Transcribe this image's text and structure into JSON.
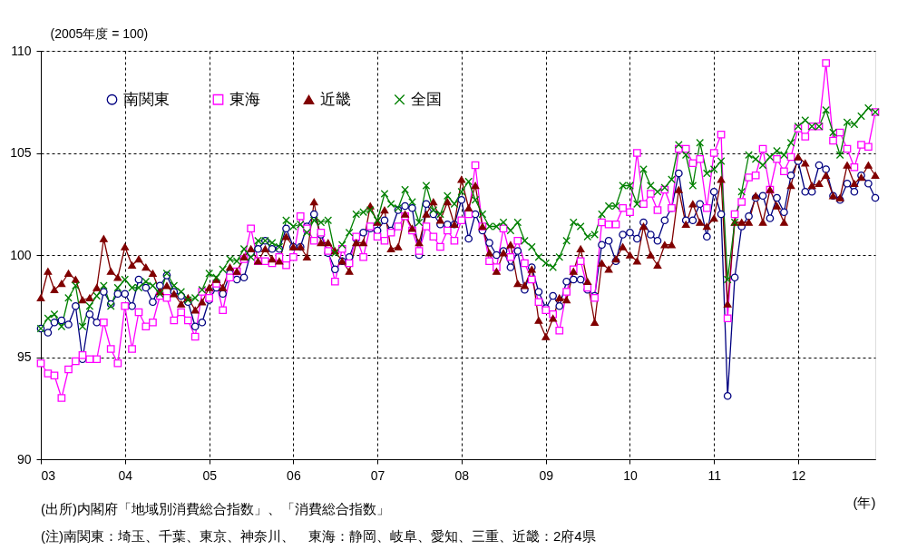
{
  "chart_data": {
    "type": "line",
    "ylabel": "(2005年度 = 100)",
    "xlabel": "(年)",
    "annotations": [
      "(出所)内閣府「地域別消費総合指数」、「消費総合指数」",
      "(注)南関東：埼玉、千葉、東京、神奈川、　東海：静岡、岐阜、愛知、三重、近畿：2府4県"
    ],
    "x": [
      "2003-01",
      "2003-02",
      "2003-03",
      "2003-04",
      "2003-05",
      "2003-06",
      "2003-07",
      "2003-08",
      "2003-09",
      "2003-10",
      "2003-11",
      "2003-12",
      "2004-01",
      "2004-02",
      "2004-03",
      "2004-04",
      "2004-05",
      "2004-06",
      "2004-07",
      "2004-08",
      "2004-09",
      "2004-10",
      "2004-11",
      "2004-12",
      "2005-01",
      "2005-02",
      "2005-03",
      "2005-04",
      "2005-05",
      "2005-06",
      "2005-07",
      "2005-08",
      "2005-09",
      "2005-10",
      "2005-11",
      "2005-12",
      "2006-01",
      "2006-02",
      "2006-03",
      "2006-04",
      "2006-05",
      "2006-06",
      "2006-07",
      "2006-08",
      "2006-09",
      "2006-10",
      "2006-11",
      "2006-12",
      "2007-01",
      "2007-02",
      "2007-03",
      "2007-04",
      "2007-05",
      "2007-06",
      "2007-07",
      "2007-08",
      "2007-09",
      "2007-10",
      "2007-11",
      "2007-12",
      "2008-01",
      "2008-02",
      "2008-03",
      "2008-04",
      "2008-05",
      "2008-06",
      "2008-07",
      "2008-08",
      "2008-09",
      "2008-10",
      "2008-11",
      "2008-12",
      "2009-01",
      "2009-02",
      "2009-03",
      "2009-04",
      "2009-05",
      "2009-06",
      "2009-07",
      "2009-08",
      "2009-09",
      "2009-10",
      "2009-11",
      "2009-12",
      "2010-01",
      "2010-02",
      "2010-03",
      "2010-04",
      "2010-05",
      "2010-06",
      "2010-07",
      "2010-08",
      "2010-09",
      "2010-10",
      "2010-11",
      "2010-12",
      "2011-01",
      "2011-02",
      "2011-03",
      "2011-04",
      "2011-05",
      "2011-06",
      "2011-07",
      "2011-08",
      "2011-09",
      "2011-10",
      "2011-11",
      "2011-12",
      "2012-01",
      "2012-02",
      "2012-03",
      "2012-04",
      "2012-05",
      "2012-06",
      "2012-07",
      "2012-08",
      "2012-09",
      "2012-10",
      "2012-11",
      "2012-12"
    ],
    "xlim": [
      "2003-01",
      "2012-12"
    ],
    "xticks": [
      {
        "value": "2003-01",
        "label": "03"
      },
      {
        "value": "2004-01",
        "label": "04"
      },
      {
        "value": "2005-01",
        "label": "05"
      },
      {
        "value": "2006-01",
        "label": "06"
      },
      {
        "value": "2007-01",
        "label": "07"
      },
      {
        "value": "2008-01",
        "label": "08"
      },
      {
        "value": "2009-01",
        "label": "09"
      },
      {
        "value": "2010-01",
        "label": "10"
      },
      {
        "value": "2011-01",
        "label": "11"
      },
      {
        "value": "2012-01",
        "label": "12"
      }
    ],
    "ylim": [
      90,
      110
    ],
    "yticks": [
      90,
      95,
      100,
      105,
      110
    ],
    "grid": true,
    "legend": "top left",
    "line_style": "solid",
    "series": [
      {
        "name": "南関東",
        "color": "#000080",
        "marker": "circle",
        "values": [
          96.4,
          96.2,
          96.7,
          96.8,
          96.6,
          97.5,
          94.9,
          97.1,
          96.7,
          98.2,
          97.6,
          98.1,
          98.1,
          97.5,
          98.8,
          98.4,
          97.7,
          98.5,
          99.0,
          98.2,
          98.0,
          97.7,
          96.5,
          96.7,
          97.8,
          98.4,
          98.1,
          99.1,
          98.8,
          98.9,
          100.1,
          100.3,
          100.7,
          100.3,
          100.3,
          101.3,
          100.4,
          100.4,
          101.4,
          102.0,
          101.0,
          100.1,
          99.3,
          99.7,
          99.9,
          100.8,
          101.1,
          101.3,
          101.2,
          101.7,
          101.2,
          102.2,
          102.4,
          102.3,
          100.0,
          102.5,
          102.0,
          101.5,
          101.5,
          101.5,
          102.7,
          100.8,
          102.0,
          101.2,
          100.6,
          100.0,
          100.2,
          99.4,
          100.2,
          98.3,
          99.4,
          98.2,
          97.4,
          98.0,
          97.5,
          98.7,
          98.8,
          98.8,
          98.3,
          98.0,
          100.5,
          100.7,
          99.7,
          101.0,
          101.1,
          100.8,
          101.6,
          101.0,
          100.7,
          101.7,
          102.3,
          104.0,
          101.7,
          101.7,
          102.5,
          100.9,
          103.1,
          102.0,
          93.1,
          98.9,
          101.4,
          101.9,
          102.8,
          102.9,
          101.8,
          102.8,
          102.1,
          103.9,
          104.6,
          103.1,
          103.1,
          104.4,
          104.2,
          102.9,
          102.7,
          103.5,
          103.1,
          103.9,
          103.5,
          102.8
        ]
      },
      {
        "name": "東海",
        "color": "#ff00ff",
        "marker": "square",
        "values": [
          94.7,
          94.2,
          94.1,
          93.0,
          94.4,
          94.8,
          95.1,
          94.9,
          94.9,
          96.7,
          95.4,
          94.7,
          97.5,
          95.4,
          97.2,
          96.5,
          96.7,
          98.0,
          97.9,
          96.8,
          97.2,
          96.8,
          96.0,
          98.2,
          97.9,
          98.6,
          97.3,
          98.9,
          99.2,
          99.8,
          101.3,
          99.7,
          99.7,
          99.6,
          99.9,
          99.5,
          99.9,
          101.9,
          101.3,
          100.7,
          101.1,
          100.2,
          98.7,
          100.3,
          99.6,
          100.9,
          99.9,
          101.4,
          100.9,
          100.7,
          101.1,
          101.4,
          101.9,
          101.2,
          100.2,
          101.4,
          100.9,
          100.4,
          101.2,
          100.7,
          101.7,
          102.0,
          104.4,
          101.4,
          99.7,
          99.4,
          101.3,
          99.9,
          100.7,
          99.6,
          98.8,
          97.7,
          97.3,
          97.1,
          96.3,
          98.2,
          99.3,
          99.7,
          98.4,
          97.9,
          101.6,
          101.5,
          101.5,
          102.3,
          102.1,
          105.0,
          102.5,
          103.0,
          102.2,
          103.2,
          102.3,
          105.2,
          105.2,
          104.5,
          104.7,
          102.3,
          105.0,
          105.9,
          96.9,
          102.0,
          102.6,
          103.8,
          103.9,
          105.2,
          103.2,
          104.7,
          104.1,
          104.8,
          106.2,
          105.8,
          106.3,
          106.3,
          109.4,
          105.6,
          106.0,
          105.2,
          104.3,
          105.4,
          105.3,
          107.0
        ]
      },
      {
        "name": "近畿",
        "color": "#800000",
        "marker": "triangle",
        "values": [
          97.9,
          99.2,
          98.3,
          98.6,
          99.1,
          98.8,
          97.8,
          97.9,
          98.4,
          100.8,
          99.2,
          98.9,
          100.4,
          99.5,
          99.8,
          99.4,
          99.1,
          98.2,
          98.5,
          98.1,
          97.6,
          97.9,
          97.3,
          97.7,
          98.4,
          98.8,
          98.4,
          99.4,
          99.2,
          99.9,
          100.3,
          99.7,
          100.3,
          99.8,
          99.7,
          100.9,
          100.4,
          100.4,
          99.9,
          102.6,
          100.6,
          100.6,
          100.2,
          99.7,
          99.2,
          100.6,
          100.6,
          102.4,
          101.6,
          102.2,
          100.3,
          100.4,
          102.0,
          101.3,
          100.6,
          102.0,
          102.6,
          101.7,
          102.6,
          101.5,
          103.7,
          102.3,
          103.4,
          101.4,
          100.1,
          99.2,
          100.1,
          100.5,
          98.6,
          98.5,
          99.3,
          96.8,
          96.0,
          96.9,
          97.9,
          97.8,
          99.2,
          100.3,
          98.7,
          96.7,
          99.6,
          99.3,
          99.8,
          100.4,
          100.0,
          99.7,
          101.4,
          100.0,
          99.5,
          100.5,
          100.5,
          103.2,
          101.5,
          102.5,
          101.6,
          101.4,
          101.8,
          103.7,
          97.6,
          101.6,
          101.6,
          101.6,
          102.9,
          101.6,
          103.2,
          102.4,
          101.6,
          103.4,
          104.8,
          104.5,
          103.4,
          103.5,
          103.9,
          102.9,
          102.8,
          104.4,
          103.5,
          103.8,
          104.4,
          103.9
        ]
      },
      {
        "name": "全国",
        "color": "#008000",
        "marker": "cross",
        "values": [
          96.4,
          96.9,
          97.1,
          96.5,
          97.9,
          98.5,
          96.5,
          97.5,
          98.0,
          98.5,
          97.5,
          98.4,
          98.8,
          98.4,
          98.4,
          98.7,
          98.5,
          98.1,
          99.1,
          98.5,
          98.2,
          97.8,
          97.9,
          98.3,
          99.1,
          98.9,
          99.3,
          99.8,
          99.7,
          100.3,
          99.9,
          100.7,
          100.7,
          100.6,
          100.4,
          101.7,
          101.4,
          101.5,
          101.1,
          101.7,
          101.6,
          101.7,
          100.1,
          100.5,
          101.1,
          102.0,
          102.1,
          102.2,
          101.7,
          103.0,
          102.5,
          102.3,
          103.2,
          102.6,
          101.6,
          103.4,
          102.2,
          102.0,
          102.9,
          102.5,
          103.1,
          103.6,
          102.7,
          102.0,
          101.4,
          101.4,
          101.6,
          101.2,
          101.6,
          100.7,
          100.4,
          99.9,
          99.6,
          99.4,
          99.9,
          100.7,
          101.6,
          101.4,
          100.9,
          101.0,
          102.0,
          102.4,
          102.4,
          103.4,
          103.4,
          102.5,
          104.2,
          103.4,
          103.1,
          103.3,
          103.7,
          105.4,
          104.9,
          103.4,
          105.5,
          104.0,
          104.2,
          104.6,
          98.8,
          101.6,
          103.1,
          104.9,
          104.7,
          104.4,
          104.8,
          105.1,
          104.9,
          105.5,
          106.3,
          106.6,
          106.3,
          106.3,
          107.1,
          106.0,
          104.9,
          106.5,
          106.4,
          106.8,
          107.2,
          107.0
        ]
      }
    ]
  }
}
